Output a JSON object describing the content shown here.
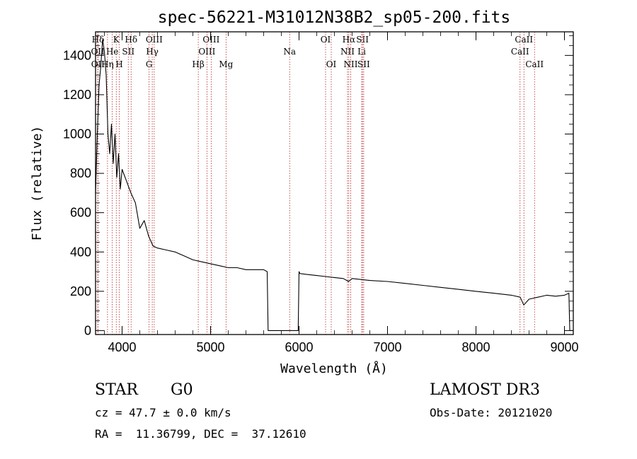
{
  "chart_data": {
    "type": "line",
    "title": "spec-56221-M31012N38B2_sp05-200.fits",
    "xlabel": "Wavelength (Å)",
    "ylabel": "Flux (relative)",
    "xlim": [
      3700,
      9100
    ],
    "ylim": [
      -20,
      1520
    ],
    "x_ticks": [
      4000,
      5000,
      6000,
      7000,
      8000,
      9000
    ],
    "x_tick_labels": [
      "4000",
      "5000",
      "6000",
      "7000",
      "8000",
      "9000"
    ],
    "y_ticks": [
      0,
      200,
      400,
      600,
      800,
      1000,
      1200,
      1400
    ],
    "y_tick_labels": [
      "0",
      "200",
      "400",
      "600",
      "800",
      "1000",
      "1200",
      "1400"
    ],
    "series": [
      {
        "name": "spectrum",
        "x": [
          3700,
          3720,
          3740,
          3760,
          3780,
          3800,
          3820,
          3840,
          3860,
          3880,
          3900,
          3920,
          3940,
          3960,
          3980,
          4000,
          4050,
          4100,
          4150,
          4200,
          4250,
          4300,
          4350,
          4400,
          4500,
          4600,
          4700,
          4800,
          4900,
          5000,
          5100,
          5200,
          5300,
          5400,
          5500,
          5600,
          5640,
          5650,
          5660,
          5700,
          5800,
          5900,
          5990,
          6000,
          6010,
          6100,
          6200,
          6300,
          6400,
          6500,
          6560,
          6600,
          6700,
          6800,
          7000,
          7200,
          7400,
          7600,
          7800,
          8000,
          8200,
          8400,
          8500,
          8540,
          8600,
          8700,
          8800,
          8900,
          9000,
          9050,
          9060,
          9080,
          9100
        ],
        "y": [
          700,
          1000,
          1250,
          1350,
          1480,
          1420,
          1300,
          1000,
          900,
          1050,
          850,
          1000,
          780,
          900,
          720,
          820,
          760,
          700,
          650,
          520,
          560,
          480,
          430,
          420,
          410,
          400,
          380,
          360,
          350,
          340,
          330,
          320,
          320,
          310,
          310,
          310,
          300,
          0,
          0,
          0,
          0,
          0,
          0,
          300,
          290,
          285,
          280,
          275,
          270,
          265,
          250,
          265,
          260,
          255,
          250,
          240,
          230,
          220,
          210,
          200,
          190,
          180,
          170,
          130,
          160,
          170,
          180,
          175,
          180,
          190,
          0,
          0,
          0
        ]
      }
    ],
    "spectral_lines": [
      {
        "label": "Hδ",
        "x": 3728,
        "row": 0
      },
      {
        "label": "OII",
        "x": 3725,
        "row": 1
      },
      {
        "label": "OII",
        "x": 3727,
        "row": 2
      },
      {
        "label": "K",
        "x": 3934,
        "row": 0
      },
      {
        "label": "He",
        "x": 3889,
        "row": 1
      },
      {
        "label": "Hη",
        "x": 3835,
        "row": 2
      },
      {
        "label": "Hδ",
        "x": 4102,
        "row": 0
      },
      {
        "label": "SII",
        "x": 4070,
        "row": 1
      },
      {
        "label": "H",
        "x": 3968,
        "row": 2
      },
      {
        "label": "OIII",
        "x": 4363,
        "row": 0
      },
      {
        "label": "Hγ",
        "x": 4341,
        "row": 1
      },
      {
        "label": "G",
        "x": 4305,
        "row": 2
      },
      {
        "label": "OIII",
        "x": 5007,
        "row": 0
      },
      {
        "label": "OIII",
        "x": 4959,
        "row": 1
      },
      {
        "label": "Hβ",
        "x": 4861,
        "row": 2
      },
      {
        "label": "Mg",
        "x": 5175,
        "row": 2
      },
      {
        "label": "Na",
        "x": 5894,
        "row": 1
      },
      {
        "label": "OI",
        "x": 6300,
        "row": 0
      },
      {
        "label": "OI",
        "x": 6364,
        "row": 2
      },
      {
        "label": "Hα",
        "x": 6563,
        "row": 0
      },
      {
        "label": "NII",
        "x": 6548,
        "row": 1
      },
      {
        "label": "NII",
        "x": 6584,
        "row": 2
      },
      {
        "label": "SII",
        "x": 6717,
        "row": 0
      },
      {
        "label": "Li",
        "x": 6708,
        "row": 1
      },
      {
        "label": "SII",
        "x": 6731,
        "row": 2
      },
      {
        "label": "CaII",
        "x": 8542,
        "row": 0
      },
      {
        "label": "CaII",
        "x": 8498,
        "row": 1
      },
      {
        "label": "CaII",
        "x": 8662,
        "row": 2
      }
    ]
  },
  "info": {
    "object_class": "STAR",
    "subclass": "G0",
    "survey": "LAMOST DR3",
    "redshift": "cz = 47.7 ± 0.0 km/s",
    "obs_date": "Obs-Date: 20121020",
    "coords": "RA =  11.36799, DEC =  37.12610"
  },
  "colors": {
    "line_marker": "#b22222",
    "spectrum": "#000000",
    "axes": "#000000"
  }
}
